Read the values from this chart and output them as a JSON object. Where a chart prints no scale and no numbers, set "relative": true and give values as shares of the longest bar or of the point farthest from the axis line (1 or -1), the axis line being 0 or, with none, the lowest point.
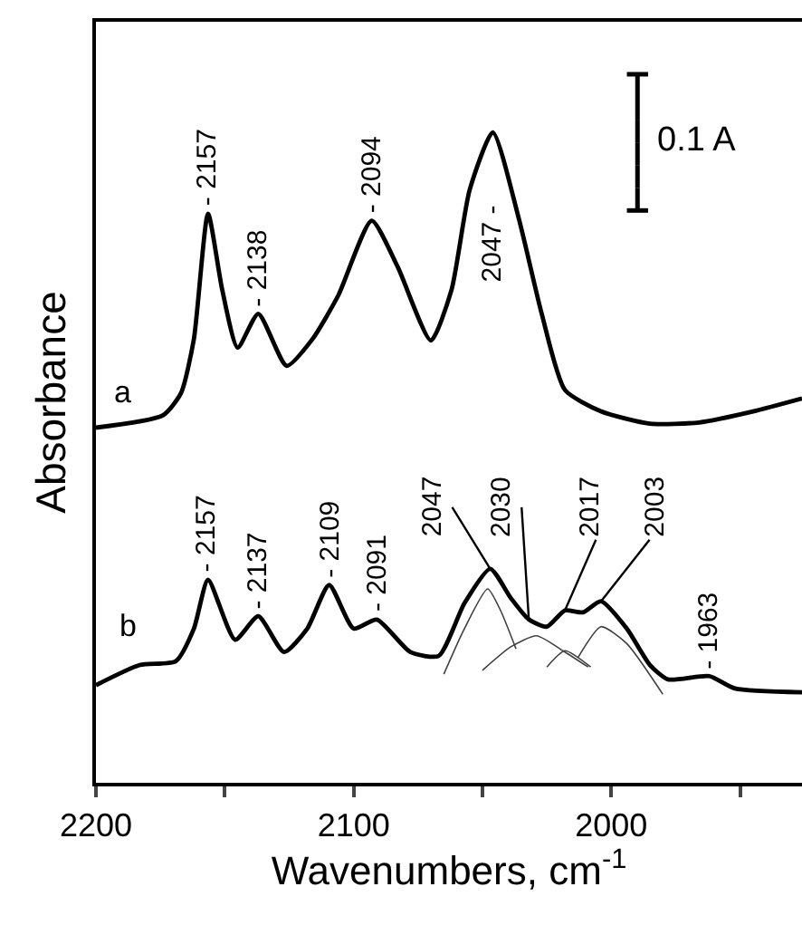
{
  "chart_data": {
    "type": "line",
    "relative": true,
    "xlabel": "Wavenumbers, cm$^{-1}$",
    "ylabel": "Absorbance",
    "xlim": [
      2200,
      1926
    ],
    "xticks": [
      2200,
      {
        "value": 2150,
        "label": null
      },
      2100,
      {
        "value": 2050,
        "label": null
      },
      2000,
      {
        "value": 1950,
        "label": null
      }
    ],
    "marker": "none",
    "line_style": "solid",
    "series": [
      {
        "color": "#000000",
        "x": [
          2200,
          2174,
          2167,
          2162,
          2156.5,
          2151,
          2145,
          2137,
          2126,
          2116,
          2106,
          2093,
          2083,
          2070,
          2062,
          2055,
          2046,
          2036,
          2027,
          2018,
          2004,
          1985,
          1966,
          1945,
          1926
        ],
        "values": [
          0.546,
          0.565,
          0.599,
          0.682,
          0.875,
          0.758,
          0.669,
          0.721,
          0.641,
          0.682,
          0.749,
          0.864,
          0.794,
          0.68,
          0.758,
          0.911,
          1.0,
          0.869,
          0.721,
          0.604,
          0.571,
          0.552,
          0.554,
          0.571,
          0.591
        ]
      },
      {
        "color": "#000000",
        "x": [
          2200,
          2183,
          2169,
          2162,
          2156.5,
          2146,
          2137,
          2127,
          2118,
          2109.5,
          2100,
          2091,
          2078,
          2067,
          2057,
          2047,
          2039,
          2032,
          2025,
          2018,
          2011,
          2004,
          1994,
          1985,
          1978,
          1962,
          1952,
          1926
        ],
        "values": [
          0.15,
          0.181,
          0.187,
          0.237,
          0.312,
          0.22,
          0.256,
          0.201,
          0.237,
          0.304,
          0.237,
          0.251,
          0.201,
          0.195,
          0.276,
          0.329,
          0.284,
          0.251,
          0.24,
          0.265,
          0.262,
          0.279,
          0.237,
          0.181,
          0.159,
          0.164,
          0.145,
          0.139
        ]
      },
      {
        "color": "#404040",
        "x": [
          2065,
          2057,
          2048,
          2043,
          2037
        ],
        "values": [
          0.167,
          0.237,
          0.298,
          0.265,
          0.206
        ]
      },
      {
        "color": "#404040",
        "x": [
          2050,
          2039,
          2029,
          2018,
          2009
        ],
        "values": [
          0.173,
          0.209,
          0.226,
          0.201,
          0.178
        ]
      },
      {
        "color": "#404040",
        "x": [
          2025,
          2018,
          2008
        ],
        "values": [
          0.178,
          0.203,
          0.178
        ]
      },
      {
        "color": "#404040",
        "x": [
          2013,
          2004,
          1994,
          1980
        ],
        "values": [
          0.192,
          0.24,
          0.214,
          0.136
        ]
      }
    ],
    "annotations": [
      {
        "text": "- 2157",
        "x": 2157,
        "y": 0.875
      },
      {
        "text": "- 2138",
        "x": 2137,
        "y": 0.721
      },
      {
        "text": "- 2094",
        "x": 2093,
        "y": 0.864
      },
      {
        "text": "2047 -",
        "x": 2046,
        "y": 1.0
      },
      "a",
      {
        "text": "- 2157",
        "x": 2157,
        "y": 0.312
      },
      {
        "text": "- 2137",
        "x": 2137,
        "y": 0.256
      },
      {
        "text": "- 2109",
        "x": 2109,
        "y": 0.304
      },
      {
        "text": "- 2091",
        "x": 2091,
        "y": 0.251
      },
      {
        "text": "2047",
        "x": 2047,
        "y": 0.329
      },
      {
        "text": "2030",
        "x": 2032,
        "y": 0.251
      },
      {
        "text": "2017",
        "x": 2018,
        "y": 0.265
      },
      {
        "text": "2003",
        "x": 2004,
        "y": 0.279
      },
      {
        "text": "- 1963",
        "x": 1962,
        "y": 0.164
      },
      "b",
      "0.1 A"
    ]
  }
}
